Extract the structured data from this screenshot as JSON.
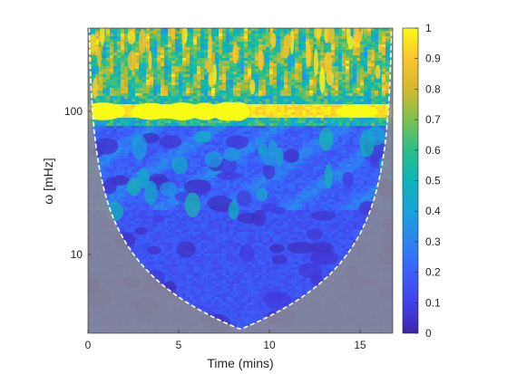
{
  "chart_data": {
    "type": "heatmap",
    "title": "",
    "xlabel": "Time (mins)",
    "ylabel": "ω [mHz]",
    "x_range": [
      0,
      16.8
    ],
    "y_range_mHz": [
      3,
      38
    ],
    "y_scale": "log",
    "x_ticks": [
      0,
      5,
      10,
      15
    ],
    "y_ticks": [
      {
        "value": 10,
        "label": "10"
      },
      {
        "value": 100,
        "label": "100"
      }
    ],
    "colorbar": {
      "colormap": "parula",
      "range": [
        0,
        1
      ],
      "ticks": [
        "0",
        "0.1",
        "0.2",
        "0.3",
        "0.4",
        "0.5",
        "0.6",
        "0.7",
        "0.8",
        "0.9",
        "1"
      ]
    },
    "cone_of_influence": {
      "style": "white dashed",
      "shaded_outside": true,
      "min_frequency_mHz": 3,
      "center_time": 8.4
    },
    "bands": [
      {
        "description": "strong coherent band",
        "frequency_mHz": 100,
        "power": 1.0
      },
      {
        "description": "high-frequency noisy region",
        "frequency_range_mHz": [
          130,
          380
        ],
        "power_range": [
          0.2,
          1.0
        ]
      },
      {
        "description": "mid-frequency region",
        "frequency_range_mHz": [
          20,
          90
        ],
        "power_range": [
          0.05,
          0.5
        ]
      },
      {
        "description": "low-frequency region",
        "frequency_range_mHz": [
          3,
          20
        ],
        "power_range": [
          0.05,
          0.3
        ]
      }
    ],
    "grid": false,
    "legend": "none"
  }
}
